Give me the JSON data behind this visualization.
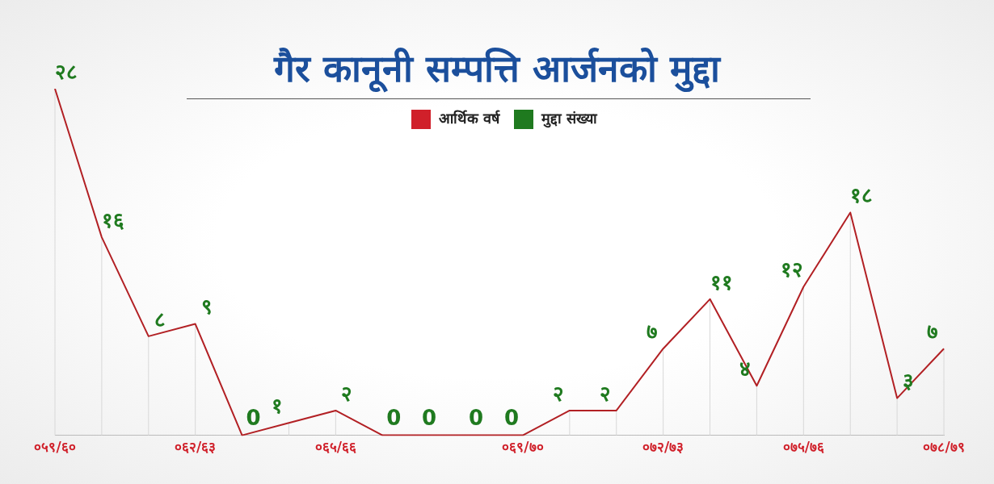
{
  "chart_data": {
    "type": "line",
    "title": "गैर कानूनी सम्पत्ति आर्जनको मुद्दा",
    "xlabel": "आर्थिक वर्ष",
    "categories": [
      "०५९/६०",
      null,
      null,
      "०६२/६३",
      null,
      null,
      "०६५/६६",
      null,
      null,
      null,
      "०६९/७०",
      null,
      null,
      "०७२/७३",
      null,
      null,
      "०७५/७६",
      null,
      null,
      "०७८/७९"
    ],
    "series": [
      {
        "name": "मुद्दा संख्या",
        "color": "#b22024",
        "values": [
          28,
          16,
          8,
          9,
          0,
          1,
          2,
          0,
          0,
          0,
          0,
          2,
          2,
          7,
          11,
          4,
          12,
          18,
          3,
          7
        ],
        "value_labels": [
          "२८",
          "१६",
          "८",
          "९",
          "0",
          "१",
          "२",
          "0",
          "0",
          "0",
          "0",
          "२",
          "२",
          "७",
          "११",
          "४",
          "१२",
          "१८",
          "३",
          "७"
        ]
      }
    ],
    "relative": false,
    "legend": "top",
    "marker": "none",
    "line_style": "solid"
  }
}
